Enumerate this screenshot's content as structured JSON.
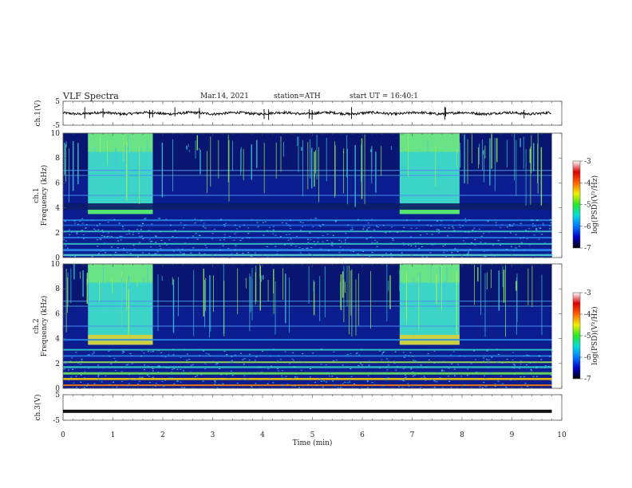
{
  "header": {
    "title": "VLF  Spectra",
    "date": "Mar.14, 2021",
    "station": "station=ATH",
    "start": "start  UT  =    16:40:1"
  },
  "colors": {
    "spectrogram_background": "#0a1a8c",
    "burst_band": "#3dd4c8",
    "trace": "#111111",
    "colormap": [
      "#000000",
      "#0000c8",
      "#0078ff",
      "#00dcdc",
      "#28e628",
      "#f0f000",
      "#ff6400",
      "#dc0000",
      "#ffffff"
    ]
  },
  "chart_data": [
    {
      "type": "line",
      "panel": "ch1-waveform",
      "ylabel": "ch.1(V)",
      "ylim": [
        -5,
        5
      ],
      "yticks": [
        "5",
        "-5"
      ],
      "xlim": [
        0,
        10
      ],
      "approx_values": {
        "x_min": [
          0,
          9.8
        ],
        "mean_V": 0,
        "amplitude_V": 1
      }
    },
    {
      "type": "heatmap",
      "panel": "ch1-spectrogram",
      "ylabel": "ch.1\nFrequency  (kHz)",
      "ylim_khz": [
        0,
        10
      ],
      "yticks": [
        "10",
        "8",
        "6",
        "4",
        "2",
        "0"
      ],
      "xlim_min": [
        0,
        10
      ],
      "data_end_min": 9.8,
      "bursts": [
        {
          "start_min": 0.5,
          "end_min": 1.8,
          "lower_edge_khz": 3.5
        },
        {
          "start_min": 6.75,
          "end_min": 7.95,
          "lower_edge_khz": 3.5
        }
      ],
      "colorbar": {
        "label": "log(PSD)(V²/Hz)",
        "ticks": [
          "-3",
          "-4",
          "-5",
          "-6",
          "-7"
        ],
        "range": [
          -7,
          -3
        ]
      }
    },
    {
      "type": "heatmap",
      "panel": "ch2-spectrogram",
      "ylabel": "ch.2\nFrequency  (kHz)",
      "ylim_khz": [
        0,
        10
      ],
      "yticks": [
        "10",
        "8",
        "6",
        "4",
        "2",
        "0"
      ],
      "xlim_min": [
        0,
        10
      ],
      "data_end_min": 9.8,
      "bursts": [
        {
          "start_min": 0.5,
          "end_min": 1.8,
          "lower_edge_khz": 3.5
        },
        {
          "start_min": 6.75,
          "end_min": 7.95,
          "lower_edge_khz": 3.5
        }
      ],
      "colorbar": {
        "label": "log(PSD)(V²/Hz)",
        "ticks": [
          "-3",
          "-4",
          "-5",
          "-6",
          "-7"
        ],
        "range": [
          -7,
          -3
        ]
      }
    },
    {
      "type": "line",
      "panel": "ch3-waveform",
      "ylabel": "ch.3(V)",
      "ylim": [
        -5,
        5
      ],
      "yticks": [
        "5",
        "-5"
      ],
      "xlim": [
        0,
        10
      ],
      "approx_values": {
        "x_min": [
          0,
          9.8
        ],
        "constant_V": -1.5
      }
    }
  ],
  "xaxis": {
    "label": "Time  (min)",
    "ticks": [
      "0",
      "1",
      "2",
      "3",
      "4",
      "5",
      "6",
      "7",
      "8",
      "9",
      "10"
    ]
  }
}
